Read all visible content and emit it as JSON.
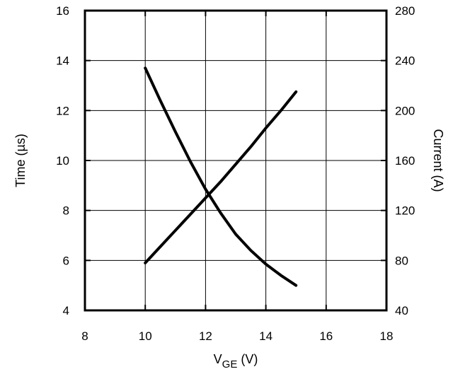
{
  "chart_data": {
    "type": "line",
    "xlabel": {
      "main": "V",
      "sub": "GE",
      "unit": " (V)"
    },
    "ylabel_left": "Time (µs)",
    "ylabel_right": "Current (A)",
    "xlim": [
      8,
      18
    ],
    "ylim_left": [
      4,
      16
    ],
    "ylim_right": [
      40,
      280
    ],
    "x_ticks": [
      "8",
      "10",
      "12",
      "14",
      "16",
      "18"
    ],
    "y_left_ticks": [
      "4",
      "6",
      "8",
      "10",
      "12",
      "14",
      "16"
    ],
    "y_right_ticks": [
      "40",
      "80",
      "120",
      "160",
      "200",
      "240",
      "280"
    ],
    "grid": true,
    "series": [
      {
        "axis": "left",
        "x": [
          10,
          10.5,
          11,
          11.5,
          12,
          12.5,
          13,
          13.5,
          14,
          14.5,
          15
        ],
        "y": [
          13.7,
          12.4,
          11.15,
          9.95,
          8.85,
          7.9,
          7.05,
          6.4,
          5.85,
          5.4,
          5.0
        ]
      },
      {
        "axis": "right",
        "x": [
          10,
          10.5,
          11,
          11.5,
          12,
          12.5,
          13,
          13.5,
          14,
          14.5,
          15
        ],
        "y": [
          78,
          91,
          104,
          117,
          130,
          143,
          157,
          171,
          186,
          200,
          215
        ]
      }
    ]
  }
}
